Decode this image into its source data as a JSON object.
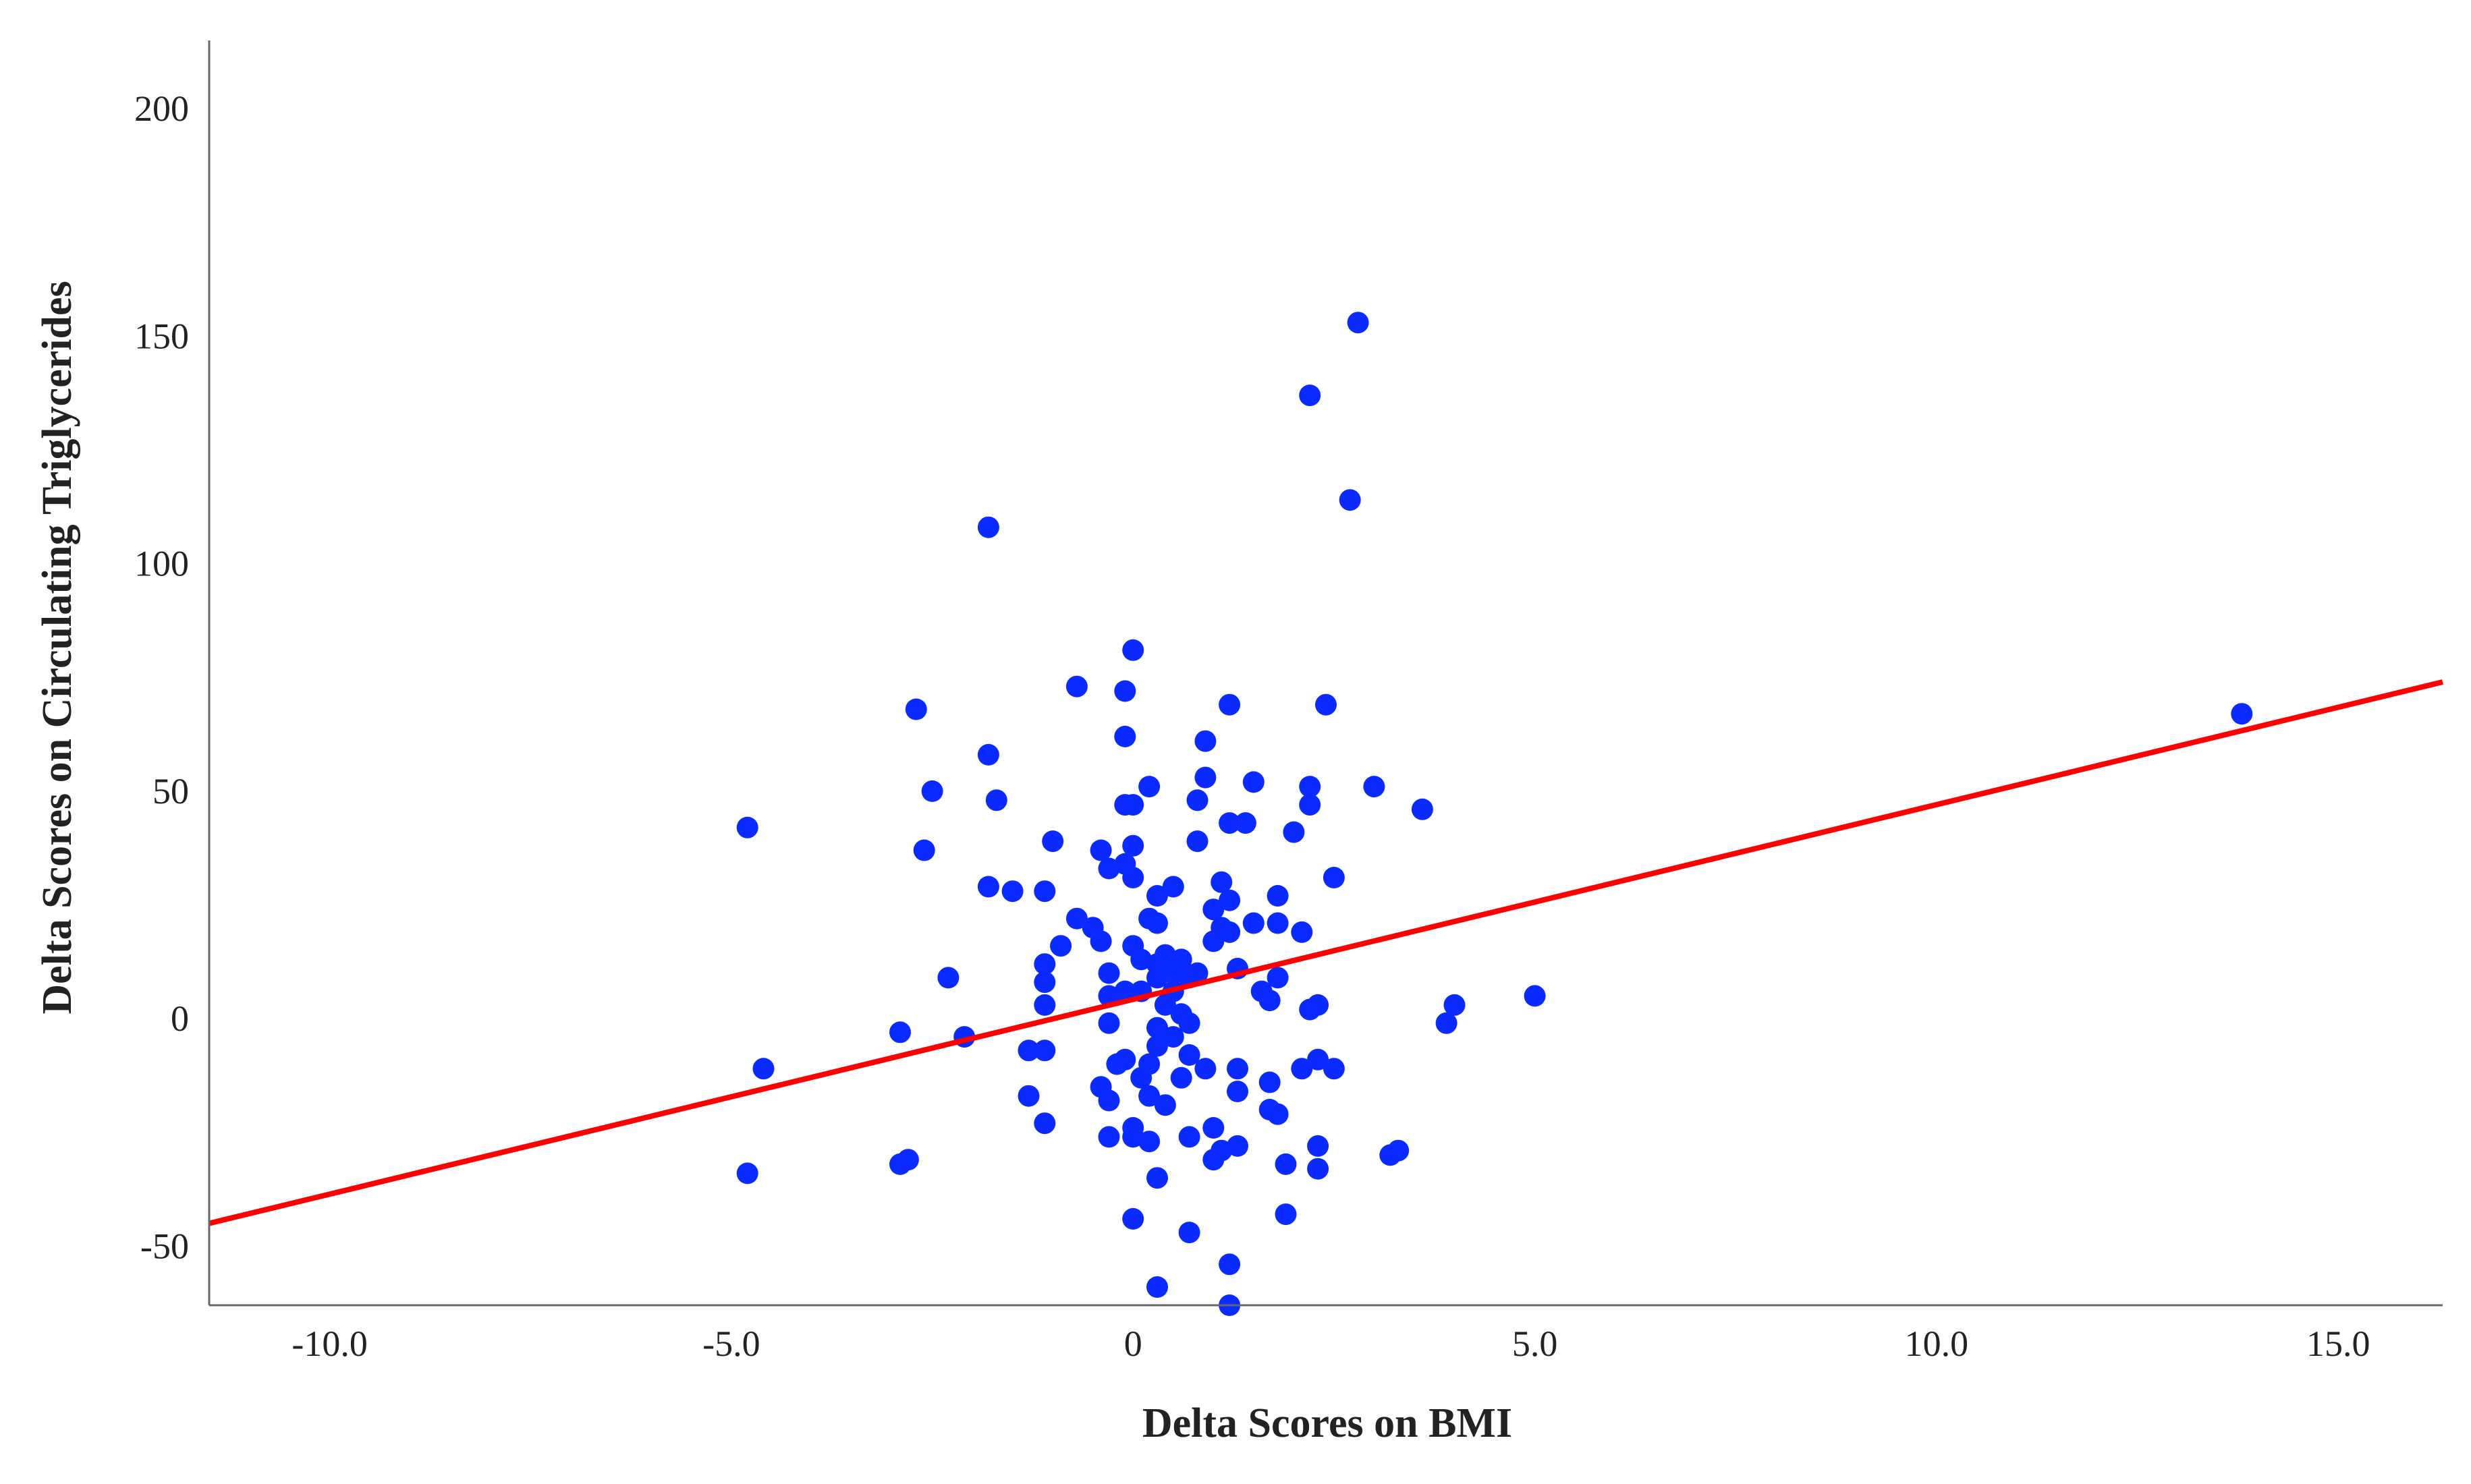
{
  "chart_data": {
    "type": "scatter",
    "title": "",
    "xlabel": "Delta Scores on BMI",
    "ylabel": "Delta Scores on Circulating Triglycerides",
    "xlim": [
      -11.5,
      16.3
    ],
    "ylim": [
      -63,
      215
    ],
    "x_ticks": [
      -10,
      -5,
      0,
      5,
      10,
      15
    ],
    "x_tick_labels": [
      "-10.0",
      "-5.0",
      "0",
      "5.0",
      "10.0",
      "15.0"
    ],
    "y_ticks": [
      -50,
      0,
      50,
      100,
      150,
      200
    ],
    "y_tick_labels": [
      "-50",
      "0",
      "50",
      "100",
      "150",
      "200"
    ],
    "grid": false,
    "legend": "none",
    "point_color": "#0a2aff",
    "line_color": "#ff0000",
    "fit_line": {
      "x": [
        -11.5,
        16.3
      ],
      "y": [
        -45,
        74
      ]
    },
    "series": [
      {
        "points": [
          [
            -4.8,
            42
          ],
          [
            -4.6,
            -11
          ],
          [
            -4.8,
            -34
          ],
          [
            -2.9,
            -32
          ],
          [
            -2.8,
            -31
          ],
          [
            -2.9,
            -3
          ],
          [
            -2.7,
            68
          ],
          [
            -2.6,
            37
          ],
          [
            -2.5,
            50
          ],
          [
            -2.3,
            9
          ],
          [
            -2.1,
            -4
          ],
          [
            -1.8,
            108
          ],
          [
            -1.8,
            58
          ],
          [
            -1.7,
            48
          ],
          [
            -1.8,
            29
          ],
          [
            -1.5,
            28
          ],
          [
            -1.3,
            -17
          ],
          [
            -1.3,
            -7
          ],
          [
            -1.1,
            12
          ],
          [
            -1.1,
            8
          ],
          [
            -1.1,
            3
          ],
          [
            -1.1,
            -7
          ],
          [
            -1.1,
            -23
          ],
          [
            -1.1,
            28
          ],
          [
            -1.0,
            39
          ],
          [
            -0.9,
            16
          ],
          [
            -0.7,
            73
          ],
          [
            -0.7,
            22
          ],
          [
            -0.5,
            20
          ],
          [
            -0.4,
            37
          ],
          [
            -0.4,
            17
          ],
          [
            -0.3,
            33
          ],
          [
            -0.3,
            10
          ],
          [
            -0.3,
            5
          ],
          [
            -0.3,
            -1
          ],
          [
            -0.4,
            -15
          ],
          [
            -0.3,
            -18
          ],
          [
            -0.3,
            -26
          ],
          [
            -0.2,
            -10
          ],
          [
            -0.1,
            72
          ],
          [
            -0.1,
            62
          ],
          [
            -0.1,
            47
          ],
          [
            -0.1,
            34
          ],
          [
            -0.1,
            6
          ],
          [
            -0.1,
            -9
          ],
          [
            0.0,
            81
          ],
          [
            0.0,
            47
          ],
          [
            0.0,
            38
          ],
          [
            0.0,
            31
          ],
          [
            0.0,
            16
          ],
          [
            0.0,
            -24
          ],
          [
            0.0,
            -26
          ],
          [
            0.0,
            -44
          ],
          [
            0.1,
            13
          ],
          [
            0.1,
            6
          ],
          [
            0.1,
            -13
          ],
          [
            0.2,
            51
          ],
          [
            0.2,
            22
          ],
          [
            0.2,
            -10
          ],
          [
            0.2,
            -17
          ],
          [
            0.2,
            -27
          ],
          [
            0.3,
            27
          ],
          [
            0.3,
            21
          ],
          [
            0.3,
            12
          ],
          [
            0.3,
            9
          ],
          [
            0.3,
            -2
          ],
          [
            0.3,
            -6
          ],
          [
            0.3,
            -35
          ],
          [
            0.3,
            -59
          ],
          [
            0.4,
            14
          ],
          [
            0.4,
            3
          ],
          [
            0.4,
            -19
          ],
          [
            0.5,
            29
          ],
          [
            0.5,
            10
          ],
          [
            0.5,
            6
          ],
          [
            0.5,
            -4
          ],
          [
            0.6,
            13
          ],
          [
            0.6,
            1
          ],
          [
            0.6,
            -13
          ],
          [
            0.7,
            9
          ],
          [
            0.7,
            -1
          ],
          [
            0.7,
            -8
          ],
          [
            0.7,
            -26
          ],
          [
            0.7,
            -47
          ],
          [
            0.8,
            48
          ],
          [
            0.8,
            39
          ],
          [
            0.8,
            10
          ],
          [
            0.9,
            53
          ],
          [
            0.9,
            61
          ],
          [
            0.9,
            -11
          ],
          [
            1.0,
            24
          ],
          [
            1.0,
            17
          ],
          [
            1.0,
            -24
          ],
          [
            1.0,
            -31
          ],
          [
            1.1,
            30
          ],
          [
            1.1,
            20
          ],
          [
            1.1,
            -29
          ],
          [
            1.2,
            69
          ],
          [
            1.2,
            26
          ],
          [
            1.2,
            19
          ],
          [
            1.2,
            43
          ],
          [
            1.2,
            -54
          ],
          [
            1.2,
            -63
          ],
          [
            1.3,
            11
          ],
          [
            1.3,
            -11
          ],
          [
            1.3,
            -16
          ],
          [
            1.3,
            -28
          ],
          [
            1.4,
            43
          ],
          [
            1.5,
            52
          ],
          [
            1.5,
            21
          ],
          [
            1.6,
            6
          ],
          [
            1.7,
            -14
          ],
          [
            1.7,
            -20
          ],
          [
            1.7,
            4
          ],
          [
            1.8,
            27
          ],
          [
            1.8,
            21
          ],
          [
            1.8,
            9
          ],
          [
            1.8,
            -21
          ],
          [
            1.9,
            -32
          ],
          [
            1.9,
            -43
          ],
          [
            2.0,
            41
          ],
          [
            2.1,
            19
          ],
          [
            2.1,
            -11
          ],
          [
            2.2,
            137
          ],
          [
            2.2,
            51
          ],
          [
            2.2,
            47
          ],
          [
            2.2,
            2
          ],
          [
            2.3,
            3
          ],
          [
            2.3,
            -9
          ],
          [
            2.3,
            -28
          ],
          [
            2.3,
            -33
          ],
          [
            2.4,
            69
          ],
          [
            2.5,
            31
          ],
          [
            2.5,
            -11
          ],
          [
            2.7,
            114
          ],
          [
            2.8,
            153
          ],
          [
            3.0,
            51
          ],
          [
            3.2,
            -30
          ],
          [
            3.3,
            -29
          ],
          [
            3.6,
            46
          ],
          [
            3.9,
            -1
          ],
          [
            4.0,
            3
          ],
          [
            5.0,
            5
          ],
          [
            13.8,
            67
          ]
        ]
      }
    ]
  }
}
